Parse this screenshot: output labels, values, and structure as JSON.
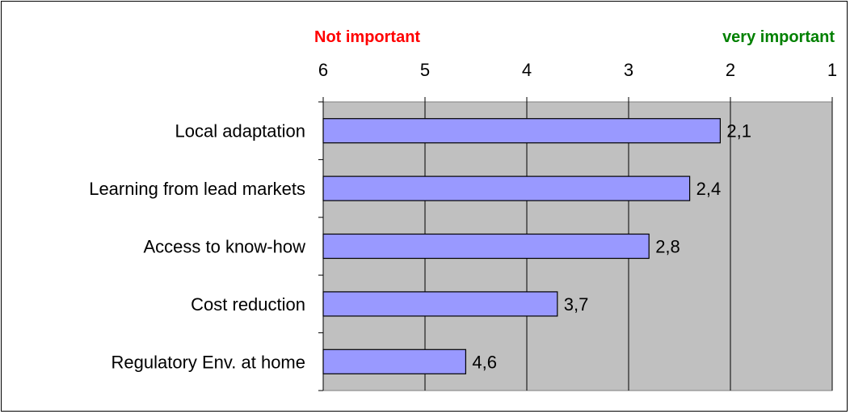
{
  "chart_data": {
    "type": "bar",
    "orientation": "horizontal",
    "x_axis_reversed": true,
    "xlim": [
      6,
      1
    ],
    "x_ticks": [
      "6",
      "5",
      "4",
      "3",
      "2",
      "1"
    ],
    "categories": [
      "Local adaptation",
      "Learning from lead markets",
      "Access to know-how",
      "Cost reduction",
      "Regulatory Env. at home"
    ],
    "values": [
      2.1,
      2.4,
      2.8,
      3.7,
      4.6
    ],
    "data_labels": [
      "2,1",
      "2,4",
      "2,8",
      "3,7",
      "4,6"
    ],
    "annotations": {
      "left": "Not important",
      "right": "very important"
    },
    "colors": {
      "bar": "#9999ff",
      "plot_background": "#c0c0c0",
      "left_annotation": "#ff0000",
      "right_annotation": "#008000"
    },
    "grid": true,
    "legend": "none"
  }
}
